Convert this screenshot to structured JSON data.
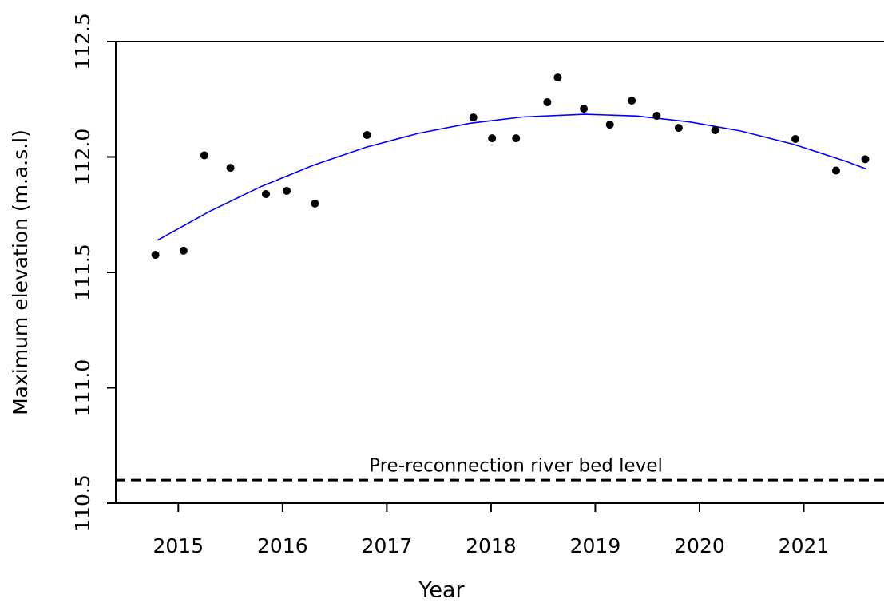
{
  "chart_data": {
    "type": "scatter",
    "xlabel": "Year",
    "ylabel": "Maximum elevation (m.a.s.l)",
    "x": [
      2014.78,
      2015.05,
      2015.25,
      2015.5,
      2015.84,
      2016.04,
      2016.31,
      2016.81,
      2017.83,
      2018.01,
      2018.24,
      2018.54,
      2018.64,
      2018.89,
      2019.14,
      2019.35,
      2019.59,
      2019.8,
      2020.15,
      2020.92,
      2021.31,
      2021.59
    ],
    "values": [
      111.576,
      111.594,
      112.007,
      111.953,
      111.839,
      111.853,
      111.798,
      112.095,
      112.171,
      112.081,
      112.081,
      112.237,
      112.344,
      112.209,
      112.14,
      112.244,
      112.178,
      112.126,
      112.116,
      112.078,
      111.941,
      111.99
    ],
    "color": "#000000",
    "fit": {
      "color": "#0000ff",
      "x": [
        2014.8,
        2015.3,
        2015.8,
        2016.3,
        2016.8,
        2017.3,
        2017.8,
        2018.3,
        2018.9,
        2019.4,
        2019.9,
        2020.4,
        2020.9,
        2021.4,
        2021.6
      ],
      "values": [
        111.639,
        111.764,
        111.873,
        111.965,
        112.042,
        112.102,
        112.146,
        112.173,
        112.185,
        112.177,
        112.152,
        112.112,
        112.055,
        111.982,
        111.948
      ]
    },
    "reference_line": {
      "value": 110.6,
      "label": "Pre-reconnection river bed level"
    },
    "xlim": [
      2014.4,
      2021.77
    ],
    "xticks": [
      2015,
      2016,
      2017,
      2018,
      2019,
      2020,
      2021
    ],
    "ylim": [
      110.5,
      112.5
    ],
    "yticks": [
      110.5,
      {
        "value": 111,
        "label": "111.0"
      },
      111.5,
      {
        "value": 112,
        "label": "112.0"
      },
      112.5
    ]
  }
}
